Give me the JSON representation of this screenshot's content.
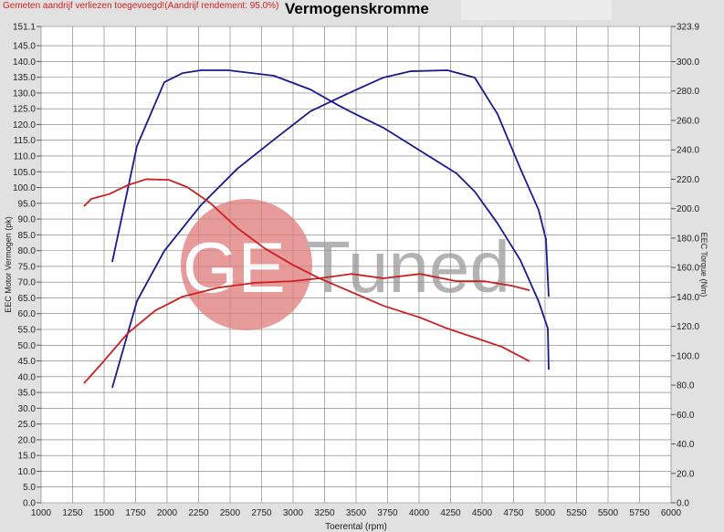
{
  "note": "Gemeten aandrijf verliezen toegevoegd!(Aandrijf rendement: 95.0%)",
  "watermark": {
    "logo_text": "GE",
    "brand_text": "Tuned"
  },
  "chart_data": {
    "type": "line",
    "title": "Vermogenskromme",
    "xlabel": "Toerental (rpm)",
    "ylabel": "EEC Motor Vermogen (pk)",
    "y2label": "EEC Torque (Nm)",
    "xlim": [
      1000,
      6000
    ],
    "ylim": [
      0,
      151.1
    ],
    "y2lim": [
      0,
      323.9
    ],
    "xticks": [
      1000,
      1250,
      1500,
      1750,
      2000,
      2250,
      2500,
      2750,
      3000,
      3250,
      3500,
      3750,
      4000,
      4250,
      4500,
      4750,
      5000,
      5250,
      5500,
      5750,
      6000
    ],
    "yticks": [
      "151.1",
      "145.0",
      "140.0",
      "135.0",
      "130.0",
      "125.0",
      "120.0",
      "115.0",
      "110.0",
      "105.0",
      "100.0",
      "95.0",
      "90.0",
      "85.0",
      "80.0",
      "75.0",
      "70.0",
      "65.0",
      "60.0",
      "55.0",
      "50.0",
      "45.0",
      "40.0",
      "35.0",
      "30.0",
      "25.0",
      "20.0",
      "15.0",
      "10.0",
      "5.0",
      "0.0"
    ],
    "y2ticks": [
      "323.9",
      "300.0",
      "280.0",
      "260.0",
      "240.0",
      "220.0",
      "200.0",
      "180.0",
      "160.0",
      "140.0",
      "120.0",
      "100.0",
      "80.0",
      "60.0",
      "40.0",
      "20.0",
      "0.0"
    ],
    "grid": true,
    "series": [
      {
        "axis": "left",
        "color": "#1a1a8c",
        "x": [
          1565,
          1761,
          1978,
          2268,
          2558,
          2848,
          3138,
          3428,
          3717,
          3935,
          4225,
          4442,
          4623,
          4804,
          4949,
          5007,
          5029
        ],
        "y": [
          36.5,
          64,
          79.9,
          94.4,
          106,
          115.2,
          124.2,
          129.7,
          134.9,
          136.9,
          137.2,
          134.9,
          123.3,
          106,
          92.9,
          83.6,
          65.4
        ]
      },
      {
        "axis": "right",
        "color": "#1a1a8c",
        "x": [
          1565,
          1761,
          1978,
          2123,
          2268,
          2485,
          2848,
          3138,
          3355,
          3464,
          3717,
          4007,
          4297,
          4442,
          4623,
          4804,
          4949,
          5022,
          5029
        ],
        "y": [
          163.8,
          242.6,
          286,
          292.2,
          294.1,
          294.1,
          290.4,
          281,
          270.5,
          265.6,
          255,
          239.5,
          224,
          211.6,
          190,
          165,
          137,
          118.5,
          90.6
        ]
      },
      {
        "axis": "left",
        "color": "#cc1f1f",
        "x": [
          1340,
          1471,
          1688,
          1906,
          2123,
          2413,
          2703,
          2993,
          3210,
          3464,
          3717,
          4007,
          4297,
          4514,
          4732,
          4877
        ],
        "y": [
          37.9,
          43.7,
          53.8,
          61,
          65.4,
          68.3,
          69.8,
          70.3,
          71.2,
          72.6,
          71.2,
          72.6,
          70.3,
          70.3,
          68.9,
          67.4
        ]
      },
      {
        "axis": "right",
        "color": "#cc1f1f",
        "x": [
          1340,
          1398,
          1543,
          1688,
          1833,
          2014,
          2159,
          2341,
          2558,
          2775,
          2993,
          3210,
          3428,
          3717,
          4007,
          4225,
          4442,
          4659,
          4877
        ],
        "y": [
          201.6,
          206.6,
          210,
          216,
          220,
          219.6,
          214.7,
          204,
          186.8,
          173,
          162,
          152.6,
          144.6,
          134,
          126,
          118.5,
          112.3,
          106,
          96.2
        ]
      }
    ]
  }
}
